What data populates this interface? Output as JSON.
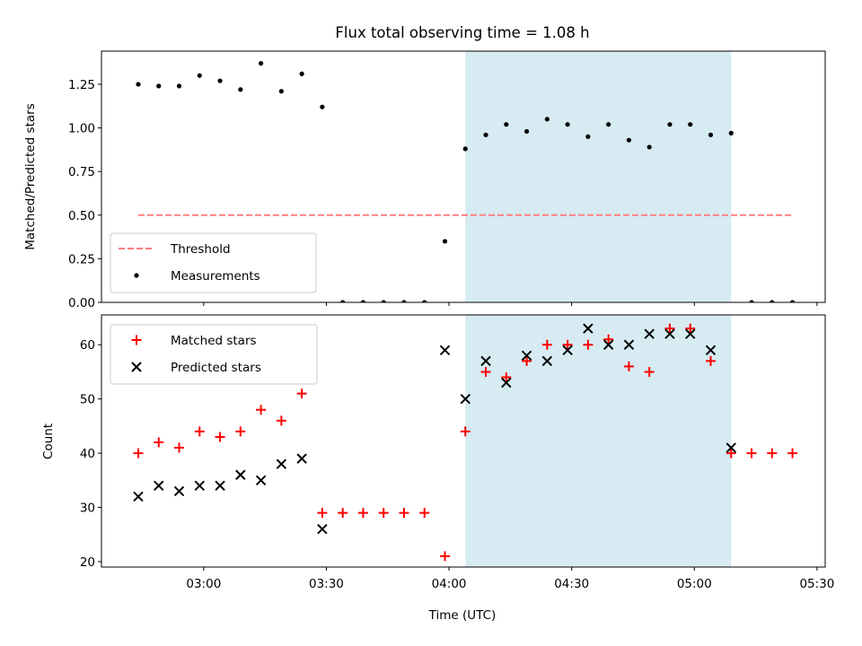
{
  "chart_data": [
    {
      "type": "scatter",
      "title": "Flux total observing time = 1.08 h",
      "xlabel": "",
      "ylabel": "Matched/Predicted stars",
      "xlim": [
        "02:35",
        "05:32"
      ],
      "ylim": [
        0.0,
        1.44
      ],
      "yticks": [
        0.0,
        0.25,
        0.5,
        0.75,
        1.0,
        1.25
      ],
      "ytick_labels": [
        "0.00",
        "0.25",
        "0.50",
        "0.75",
        "1.00",
        "1.25"
      ],
      "grid": false,
      "legend_position": "lower-left",
      "shaded_interval": {
        "start": "04:04",
        "end": "05:09",
        "color": "#add8e6"
      },
      "series": [
        {
          "name": "Threshold",
          "style": "dashed-line",
          "color": "#ff7f7f",
          "x": [
            "02:44",
            "05:24"
          ],
          "y": [
            0.5,
            0.5
          ]
        },
        {
          "name": "Measurements",
          "style": "dot",
          "color": "#000000",
          "x": [
            "02:44",
            "02:49",
            "02:54",
            "02:59",
            "03:04",
            "03:09",
            "03:14",
            "03:19",
            "03:24",
            "03:29",
            "03:34",
            "03:39",
            "03:44",
            "03:49",
            "03:54",
            "03:59",
            "04:04",
            "04:09",
            "04:14",
            "04:19",
            "04:24",
            "04:29",
            "04:34",
            "04:39",
            "04:44",
            "04:49",
            "04:54",
            "04:59",
            "05:04",
            "05:09",
            "05:14",
            "05:19",
            "05:24"
          ],
          "y": [
            1.25,
            1.24,
            1.24,
            1.3,
            1.27,
            1.22,
            1.37,
            1.21,
            1.31,
            1.12,
            0.0,
            0.0,
            0.0,
            0.0,
            0.0,
            0.35,
            0.88,
            0.96,
            1.02,
            0.98,
            1.05,
            1.02,
            0.95,
            1.02,
            0.93,
            0.89,
            1.02,
            1.02,
            0.96,
            0.97,
            0.0,
            0.0,
            0.0
          ]
        }
      ]
    },
    {
      "type": "scatter",
      "title": "",
      "xlabel": "Time (UTC)",
      "ylabel": "Count",
      "xlim": [
        "02:35",
        "05:32"
      ],
      "ylim": [
        19,
        65.5
      ],
      "xticks": [
        "03:00",
        "03:30",
        "04:00",
        "04:30",
        "05:00",
        "05:30"
      ],
      "yticks": [
        20,
        30,
        40,
        50,
        60
      ],
      "ytick_labels": [
        "20",
        "30",
        "40",
        "50",
        "60"
      ],
      "grid": false,
      "legend_position": "upper-left",
      "shaded_interval": {
        "start": "04:04",
        "end": "05:09",
        "color": "#add8e6"
      },
      "series": [
        {
          "name": "Matched stars",
          "marker": "+",
          "color": "#ff0000",
          "x": [
            "02:44",
            "02:49",
            "02:54",
            "02:59",
            "03:04",
            "03:09",
            "03:14",
            "03:19",
            "03:24",
            "03:29",
            "03:34",
            "03:39",
            "03:44",
            "03:49",
            "03:54",
            "03:59",
            "04:04",
            "04:09",
            "04:14",
            "04:19",
            "04:24",
            "04:29",
            "04:34",
            "04:39",
            "04:44",
            "04:49",
            "04:54",
            "04:59",
            "05:04",
            "05:09",
            "05:14",
            "05:19",
            "05:24"
          ],
          "y": [
            40,
            42,
            41,
            44,
            43,
            44,
            48,
            46,
            51,
            29,
            29,
            29,
            29,
            29,
            29,
            21,
            44,
            55,
            54,
            57,
            60,
            60,
            60,
            61,
            56,
            55,
            63,
            63,
            57,
            40,
            40,
            40,
            40
          ]
        },
        {
          "name": "Predicted stars",
          "marker": "x",
          "color": "#000000",
          "x": [
            "02:44",
            "02:49",
            "02:54",
            "02:59",
            "03:04",
            "03:09",
            "03:14",
            "03:19",
            "03:24",
            "03:29",
            "03:59",
            "04:04",
            "04:09",
            "04:14",
            "04:19",
            "04:24",
            "04:29",
            "04:34",
            "04:39",
            "04:44",
            "04:49",
            "04:54",
            "04:59",
            "05:04",
            "05:09"
          ],
          "y": [
            32,
            34,
            33,
            34,
            34,
            36,
            35,
            38,
            39,
            26,
            59,
            50,
            57,
            53,
            58,
            57,
            59,
            63,
            60,
            60,
            62,
            62,
            62,
            59,
            41
          ]
        }
      ]
    }
  ]
}
